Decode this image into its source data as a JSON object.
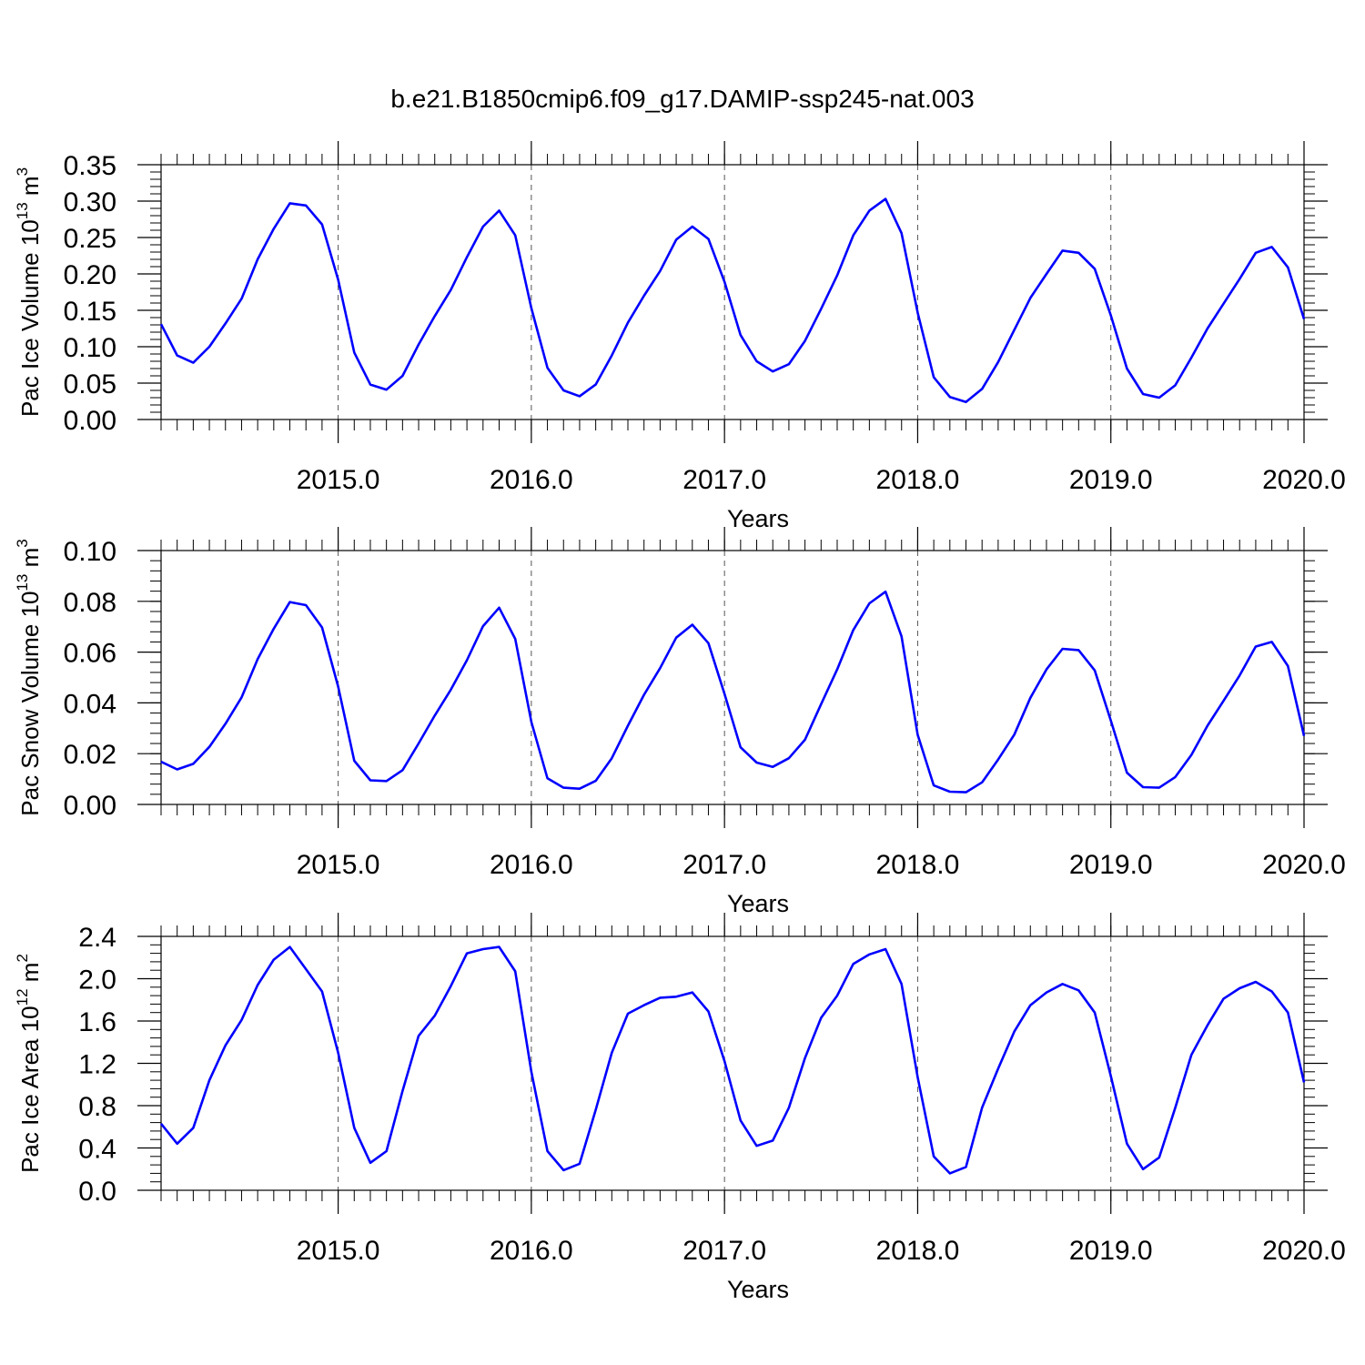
{
  "figure": {
    "title": "b.e21.B1850cmip6.f09_g17.DAMIP-ssp245-nat.003",
    "line_color": "#0000ff"
  },
  "chart_data": [
    {
      "type": "line",
      "ylabel": "Pac Ice Volume 10",
      "ylabel_exp": "13",
      "ylabel_unit": " m",
      "ylabel_unit_exp": "3",
      "xlabel": "Years",
      "x_start": 2014.0833,
      "x_step": 0.0833333,
      "xlim": [
        2014.0833,
        2020.0
      ],
      "xticks": [
        2015.0,
        2016.0,
        2017.0,
        2018.0,
        2019.0,
        2020.0
      ],
      "xtick_labels": [
        "2015.0",
        "2016.0",
        "2017.0",
        "2018.0",
        "2019.0",
        "2020.0"
      ],
      "ylim": [
        0.0,
        0.35
      ],
      "yticks": [
        0.0,
        0.05,
        0.1,
        0.15,
        0.2,
        0.25,
        0.3,
        0.35
      ],
      "ytick_labels": [
        "0.00",
        "0.05",
        "0.10",
        "0.15",
        "0.20",
        "0.25",
        "0.30",
        "0.35"
      ],
      "values": [
        0.131,
        0.088,
        0.078,
        0.1,
        0.132,
        0.166,
        0.22,
        0.262,
        0.297,
        0.294,
        0.268,
        0.192,
        0.092,
        0.048,
        0.041,
        0.06,
        0.103,
        0.142,
        0.178,
        0.223,
        0.265,
        0.287,
        0.253,
        0.153,
        0.071,
        0.04,
        0.032,
        0.048,
        0.088,
        0.133,
        0.17,
        0.204,
        0.247,
        0.265,
        0.248,
        0.189,
        0.116,
        0.08,
        0.066,
        0.076,
        0.108,
        0.152,
        0.198,
        0.253,
        0.287,
        0.303,
        0.256,
        0.147,
        0.058,
        0.031,
        0.024,
        0.042,
        0.079,
        0.123,
        0.167,
        0.2,
        0.232,
        0.229,
        0.207,
        0.143,
        0.07,
        0.035,
        0.03,
        0.047,
        0.085,
        0.125,
        0.159,
        0.193,
        0.229,
        0.237,
        0.209,
        0.138
      ]
    },
    {
      "type": "line",
      "ylabel": "Pac Snow Volume 10",
      "ylabel_exp": "13",
      "ylabel_unit": " m",
      "ylabel_unit_exp": "3",
      "xlabel": "Years",
      "x_start": 2014.0833,
      "x_step": 0.0833333,
      "xlim": [
        2014.0833,
        2020.0
      ],
      "xticks": [
        2015.0,
        2016.0,
        2017.0,
        2018.0,
        2019.0,
        2020.0
      ],
      "xtick_labels": [
        "2015.0",
        "2016.0",
        "2017.0",
        "2018.0",
        "2019.0",
        "2020.0"
      ],
      "ylim": [
        0.0,
        0.1
      ],
      "yticks": [
        0.0,
        0.02,
        0.04,
        0.06,
        0.08,
        0.1
      ],
      "ytick_labels": [
        "0.00",
        "0.02",
        "0.04",
        "0.06",
        "0.08",
        "0.10"
      ],
      "values": [
        0.0168,
        0.0138,
        0.016,
        0.0227,
        0.0318,
        0.0422,
        0.0572,
        0.0692,
        0.0797,
        0.0785,
        0.0697,
        0.0464,
        0.0172,
        0.0095,
        0.0092,
        0.0135,
        0.024,
        0.035,
        0.0452,
        0.0568,
        0.0702,
        0.0775,
        0.0652,
        0.0325,
        0.0103,
        0.0066,
        0.0062,
        0.0093,
        0.0182,
        0.031,
        0.0432,
        0.0537,
        0.0657,
        0.0708,
        0.0635,
        0.0435,
        0.0225,
        0.0165,
        0.0148,
        0.0182,
        0.0255,
        0.0395,
        0.0532,
        0.0687,
        0.0792,
        0.0838,
        0.0662,
        0.0275,
        0.0075,
        0.005,
        0.0048,
        0.0087,
        0.0177,
        0.0275,
        0.042,
        0.0532,
        0.0613,
        0.0608,
        0.0528,
        0.033,
        0.0125,
        0.0068,
        0.0066,
        0.0108,
        0.0195,
        0.031,
        0.0408,
        0.0508,
        0.0622,
        0.064,
        0.0545,
        0.027
      ]
    },
    {
      "type": "line",
      "ylabel": "Pac Ice Area 10",
      "ylabel_exp": "12",
      "ylabel_unit": " m",
      "ylabel_unit_exp": "2",
      "xlabel": "Years",
      "x_start": 2014.0833,
      "x_step": 0.0833333,
      "xlim": [
        2014.0833,
        2020.0
      ],
      "xticks": [
        2015.0,
        2016.0,
        2017.0,
        2018.0,
        2019.0,
        2020.0
      ],
      "xtick_labels": [
        "2015.0",
        "2016.0",
        "2017.0",
        "2018.0",
        "2019.0",
        "2020.0"
      ],
      "ylim": [
        0.0,
        2.4
      ],
      "yticks": [
        0.0,
        0.4,
        0.8,
        1.2,
        1.6,
        2.0,
        2.4
      ],
      "ytick_labels": [
        "0.0",
        "0.4",
        "0.8",
        "1.2",
        "1.6",
        "2.0",
        "2.4"
      ],
      "values": [
        0.63,
        0.44,
        0.59,
        1.04,
        1.37,
        1.61,
        1.94,
        2.18,
        2.3,
        2.09,
        1.88,
        1.3,
        0.59,
        0.26,
        0.37,
        0.94,
        1.46,
        1.65,
        1.93,
        2.24,
        2.28,
        2.3,
        2.07,
        1.12,
        0.37,
        0.19,
        0.25,
        0.76,
        1.3,
        1.67,
        1.75,
        1.82,
        1.83,
        1.87,
        1.69,
        1.22,
        0.66,
        0.42,
        0.47,
        0.78,
        1.25,
        1.63,
        1.84,
        2.14,
        2.23,
        2.28,
        1.95,
        1.07,
        0.32,
        0.16,
        0.22,
        0.78,
        1.15,
        1.5,
        1.75,
        1.87,
        1.95,
        1.89,
        1.68,
        1.08,
        0.44,
        0.2,
        0.31,
        0.78,
        1.28,
        1.56,
        1.81,
        1.91,
        1.97,
        1.88,
        1.68,
        1.02
      ]
    }
  ]
}
